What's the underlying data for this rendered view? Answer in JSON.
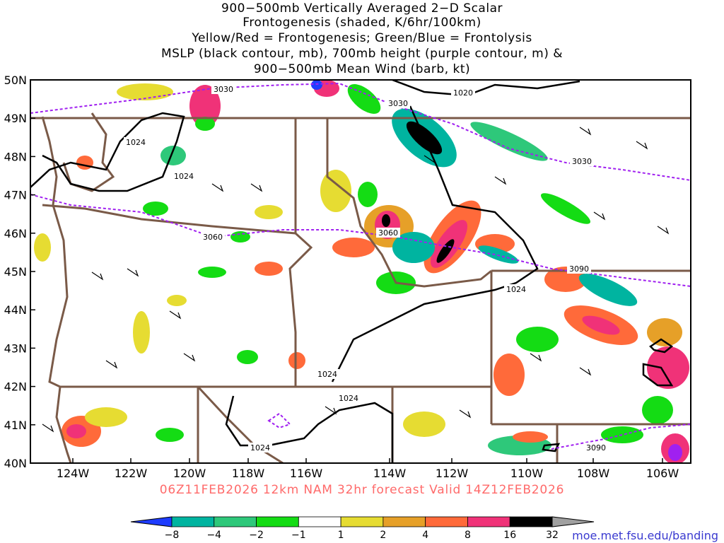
{
  "title": {
    "line1": "900−500mb Vertically Averaged 2−D Scalar",
    "line2": "Frontogenesis (shaded, K/6hr/100km)",
    "line3": "Yellow/Red = Frontogenesis;  Green/Blue = Frontolysis",
    "line4": "MSLP (black contour, mb), 700mb height (purple contour, m) &",
    "line5": "900−500mb Mean Wind (barb, kt)"
  },
  "axes": {
    "lat_labels": [
      "50N",
      "49N",
      "48N",
      "47N",
      "46N",
      "45N",
      "44N",
      "43N",
      "42N",
      "41N",
      "40N"
    ],
    "lon_labels": [
      "124W",
      "122W",
      "120W",
      "118W",
      "116W",
      "114W",
      "112W",
      "110W",
      "108W",
      "106W"
    ]
  },
  "contour_labels": {
    "mslp": [
      "1020",
      "1024",
      "1024",
      "1024",
      "1024",
      "1024",
      "1024"
    ],
    "height": [
      "3030",
      "3030",
      "3030",
      "3060",
      "3060",
      "3090",
      "3090"
    ]
  },
  "colorbar": {
    "labels": [
      "−8",
      "−4",
      "−2",
      "−1",
      "1",
      "2",
      "4",
      "8",
      "16",
      "32"
    ],
    "colors": [
      "#1e3cff",
      "#00b4a0",
      "#2ec87a",
      "#14dc14",
      "#ffffff",
      "#e6dc32",
      "#e6a028",
      "#ff6a3a",
      "#f03278",
      "#000000",
      "#a0a0a0"
    ]
  },
  "colors": {
    "state_borders": "#7a5a48",
    "mslp_contour": "#000000",
    "height_contour": "#a020f0",
    "footer_text": "#ff6a6a"
  },
  "footer": "06Z11FEB2026 12km NAM 32hr forecast Valid 14Z12FEB2026",
  "credit": "moe.met.fsu.edu/banding"
}
